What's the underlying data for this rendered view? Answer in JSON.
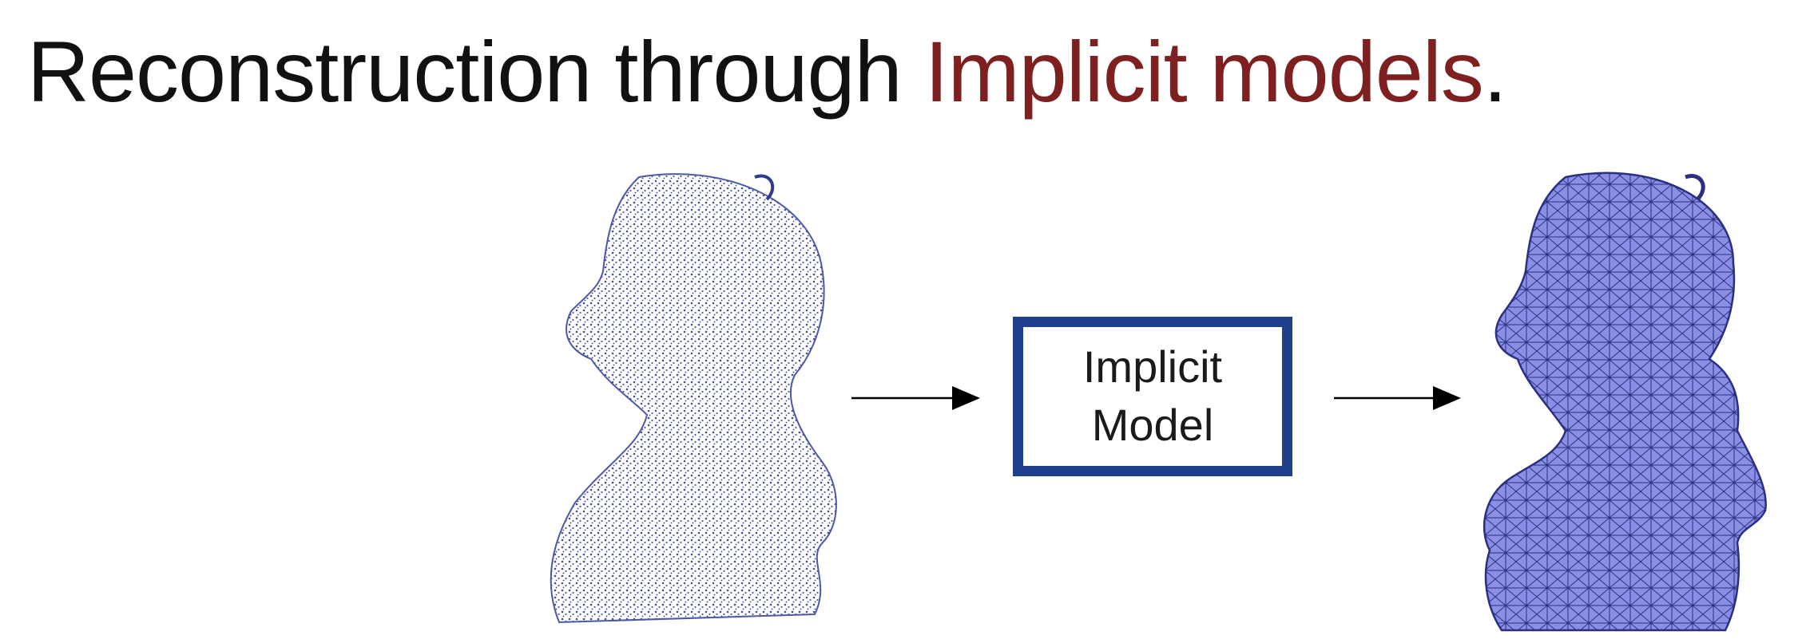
{
  "title": {
    "prefix": "Reconstruction through ",
    "highlight": "Implicit models",
    "suffix": "."
  },
  "diagram": {
    "box_line1": "Implicit",
    "box_line2": "Model",
    "input_label": "",
    "output_label": ""
  },
  "colors": {
    "title_text": "#111111",
    "highlight": "#7f2020",
    "box_border": "#1f3f8c",
    "point_cloud": "#2e3a8c",
    "mesh_fill": "#8a8fe6",
    "mesh_lines": "#2a2f80"
  }
}
